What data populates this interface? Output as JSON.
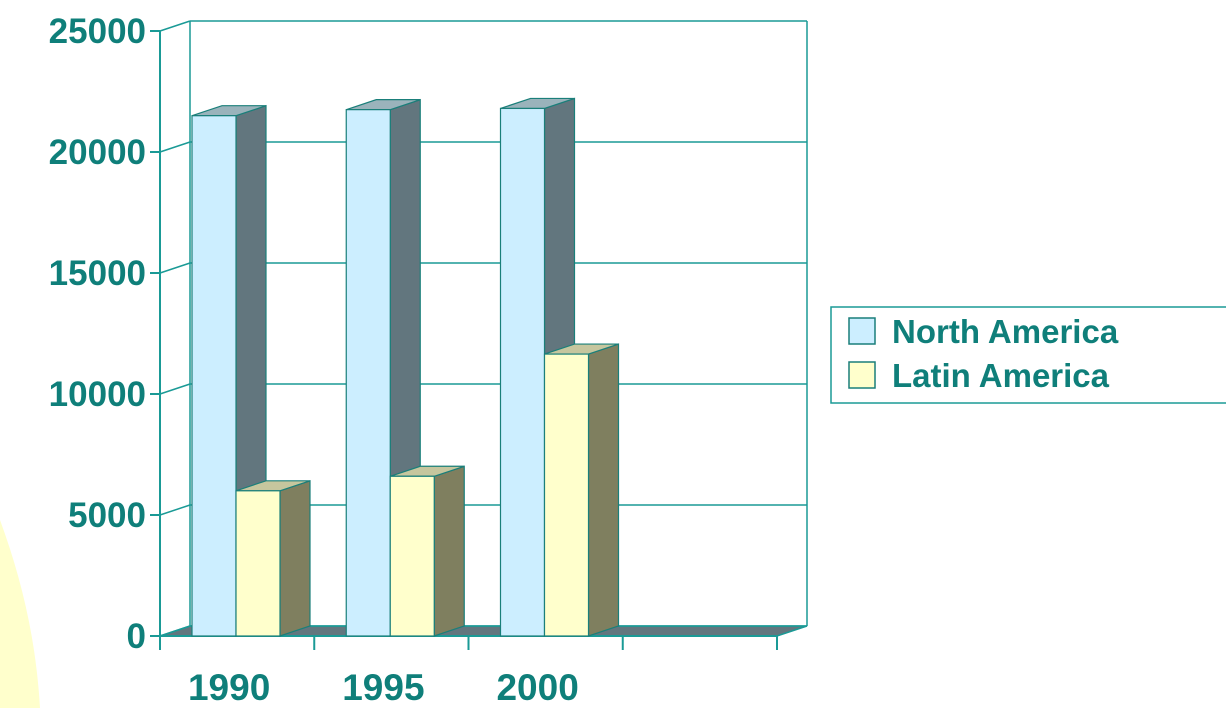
{
  "chart_data": {
    "type": "bar",
    "style": "3d-clustered-column",
    "categories": [
      "1990",
      "1995",
      "2000",
      ""
    ],
    "series": [
      {
        "name": "North America",
        "values": [
          21500,
          21750,
          21800,
          null
        ],
        "color": "#cceeff",
        "side_color": "#62767e",
        "top_color": "#9ab3bb"
      },
      {
        "name": "Latin America",
        "values": [
          6000,
          6600,
          11650,
          null
        ],
        "color": "#ffffcc",
        "side_color": "#7f7f5f",
        "top_color": "#c6c69e"
      }
    ],
    "y_ticks": [
      "0",
      "5000",
      "10000",
      "15000",
      "20000",
      "25000"
    ],
    "ylim": [
      0,
      25000
    ],
    "grid": true,
    "legend_position": "right",
    "colors": {
      "text": "#0f7f7a",
      "axis": "#1a9a96",
      "floor": "#62767e",
      "decoration": "#ffffcc"
    }
  }
}
